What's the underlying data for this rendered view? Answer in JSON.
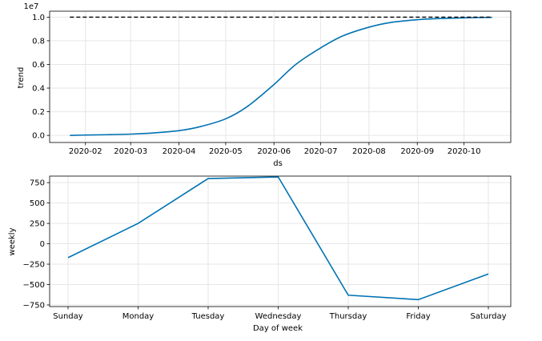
{
  "colors": {
    "series": "#0072B2",
    "cap": "#000000",
    "grid": "#e6e6e6"
  },
  "chart_data": [
    {
      "type": "line",
      "ylabel": "trend",
      "xlabel": "ds",
      "y_multiplier": "1e7",
      "grid": true,
      "x_range": [
        "2020-01-09",
        "2020-10-31"
      ],
      "ylim": [
        -0.06,
        1.05
      ],
      "y_ticks": [
        {
          "value": 0.0,
          "label": "0.0"
        },
        {
          "value": 0.2,
          "label": "0.2"
        },
        {
          "value": 0.4,
          "label": "0.4"
        },
        {
          "value": 0.6,
          "label": "0.6"
        },
        {
          "value": 0.8,
          "label": "0.8"
        },
        {
          "value": 1.0,
          "label": "1.0"
        }
      ],
      "x_ticks": [
        {
          "date": "2020-02-01",
          "label": "2020-02"
        },
        {
          "date": "2020-03-01",
          "label": "2020-03"
        },
        {
          "date": "2020-04-01",
          "label": "2020-04"
        },
        {
          "date": "2020-05-01",
          "label": "2020-05"
        },
        {
          "date": "2020-06-01",
          "label": "2020-06"
        },
        {
          "date": "2020-07-01",
          "label": "2020-07"
        },
        {
          "date": "2020-08-01",
          "label": "2020-08"
        },
        {
          "date": "2020-09-01",
          "label": "2020-09"
        },
        {
          "date": "2020-10-01",
          "label": "2020-10"
        }
      ],
      "series": [
        {
          "style": "solid",
          "color": "#0072B2",
          "x": [
            "2020-01-22",
            "2020-02-01",
            "2020-02-15",
            "2020-03-01",
            "2020-03-15",
            "2020-04-01",
            "2020-04-15",
            "2020-05-01",
            "2020-05-15",
            "2020-06-01",
            "2020-06-15",
            "2020-07-01",
            "2020-07-15",
            "2020-08-01",
            "2020-08-15",
            "2020-09-01",
            "2020-09-15",
            "2020-10-01",
            "2020-10-19"
          ],
          "y": [
            0.0,
            0.003,
            0.006,
            0.011,
            0.02,
            0.04,
            0.075,
            0.14,
            0.245,
            0.43,
            0.6,
            0.74,
            0.84,
            0.915,
            0.955,
            0.978,
            0.988,
            0.994,
            0.998
          ]
        },
        {
          "style": "dashed",
          "color": "#000000",
          "x": [
            "2020-01-22",
            "2020-10-19"
          ],
          "y": [
            1.0,
            1.0
          ]
        }
      ]
    },
    {
      "type": "line",
      "ylabel": "weekly",
      "xlabel": "Day of week",
      "grid": true,
      "ylim": [
        -770,
        830
      ],
      "categories": [
        "Sunday",
        "Monday",
        "Tuesday",
        "Wednesday",
        "Thursday",
        "Friday",
        "Saturday"
      ],
      "y_ticks": [
        {
          "value": 750,
          "label": "750"
        },
        {
          "value": 500,
          "label": "500"
        },
        {
          "value": 250,
          "label": "250"
        },
        {
          "value": 0,
          "label": "0"
        },
        {
          "value": -250,
          "label": "−250"
        },
        {
          "value": -500,
          "label": "−500"
        },
        {
          "value": -750,
          "label": "−750"
        }
      ],
      "series": [
        {
          "style": "solid",
          "color": "#0072B2",
          "values": [
            -170,
            250,
            800,
            820,
            -630,
            -685,
            -370
          ]
        }
      ]
    }
  ]
}
